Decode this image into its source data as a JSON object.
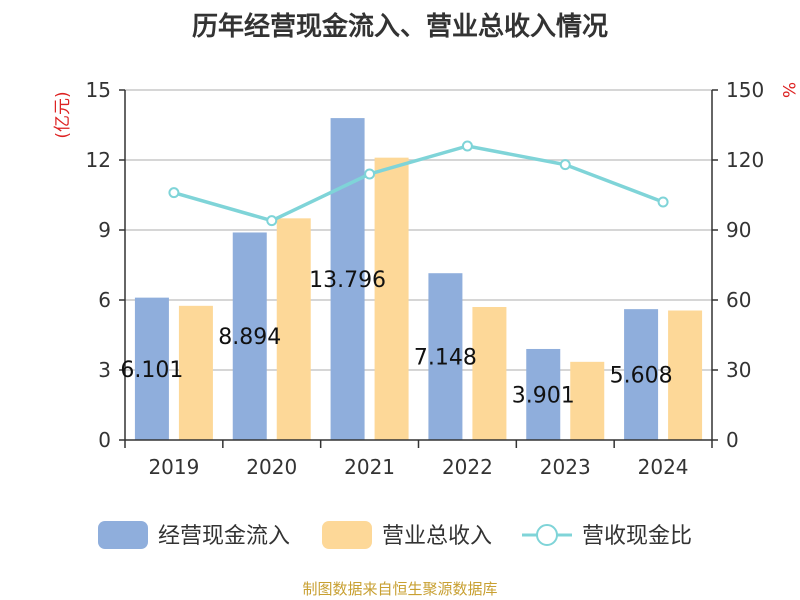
{
  "chart_data": {
    "type": "bar",
    "title": "历年经营现金流入、营业总收入情况",
    "categories": [
      "2019",
      "2020",
      "2021",
      "2022",
      "2023",
      "2024"
    ],
    "series": [
      {
        "name": "经营现金流入",
        "kind": "bar",
        "axis": "left",
        "color": "#8faedc",
        "values": [
          6.101,
          8.894,
          13.796,
          7.148,
          3.901,
          5.608
        ],
        "labels": [
          "6.101",
          "8.894",
          "13.796",
          "7.148",
          "3.901",
          "5.608"
        ]
      },
      {
        "name": "营业总收入",
        "kind": "bar",
        "axis": "left",
        "color": "#fdd898",
        "values": [
          5.75,
          9.5,
          12.1,
          5.7,
          3.35,
          5.55
        ]
      },
      {
        "name": "营收现金比",
        "kind": "line",
        "axis": "right",
        "color": "#7fd4d8",
        "values": [
          106,
          94,
          114,
          126,
          118,
          102
        ]
      }
    ],
    "ylabel": "(亿元)",
    "ylabel_right": "%",
    "ylim": [
      0,
      15
    ],
    "yticks": [
      0,
      3,
      6,
      9,
      12,
      15
    ],
    "ylim_right": [
      0,
      150
    ],
    "yticks_right": [
      0,
      30,
      60,
      90,
      120,
      150
    ],
    "grid": true,
    "legend_position": "bottom"
  },
  "source": "制图数据来自恒生聚源数据库"
}
